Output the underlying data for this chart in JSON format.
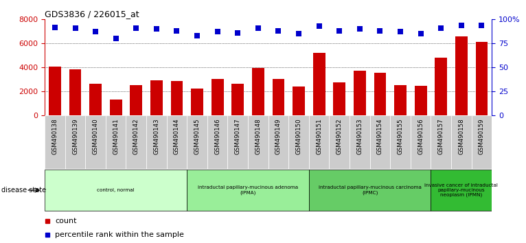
{
  "title": "GDS3836 / 226015_at",
  "samples": [
    "GSM490138",
    "GSM490139",
    "GSM490140",
    "GSM490141",
    "GSM490142",
    "GSM490143",
    "GSM490144",
    "GSM490145",
    "GSM490146",
    "GSM490147",
    "GSM490148",
    "GSM490149",
    "GSM490150",
    "GSM490151",
    "GSM490152",
    "GSM490153",
    "GSM490154",
    "GSM490155",
    "GSM490156",
    "GSM490157",
    "GSM490158",
    "GSM490159"
  ],
  "counts": [
    4050,
    3820,
    2650,
    1350,
    2550,
    2900,
    2880,
    2230,
    3020,
    2650,
    3950,
    3020,
    2420,
    5200,
    2750,
    3750,
    3550,
    2550,
    2450,
    4800,
    6600,
    6150
  ],
  "percentiles": [
    92,
    91,
    87,
    80,
    91,
    90,
    88,
    83,
    87,
    86,
    91,
    88,
    85,
    93,
    88,
    90,
    88,
    87,
    85,
    91,
    94,
    94
  ],
  "bar_color": "#cc0000",
  "dot_color": "#0000cc",
  "ylim_left": [
    0,
    8000
  ],
  "ylim_right": [
    0,
    100
  ],
  "yticks_left": [
    0,
    2000,
    4000,
    6000,
    8000
  ],
  "yticks_right": [
    0,
    25,
    50,
    75,
    100
  ],
  "ytick_labels_right": [
    "0",
    "25",
    "50",
    "75",
    "100%"
  ],
  "grid_values": [
    2000,
    4000,
    6000
  ],
  "disease_groups": [
    {
      "label": "control, normal",
      "start": 0,
      "end": 7,
      "color": "#ccffcc"
    },
    {
      "label": "intraductal papillary-mucinous adenoma\n(IPMA)",
      "start": 7,
      "end": 13,
      "color": "#99ee99"
    },
    {
      "label": "intraductal papillary-mucinous carcinoma\n(IPMC)",
      "start": 13,
      "end": 19,
      "color": "#66cc66"
    },
    {
      "label": "invasive cancer of intraductal\npapillary-mucinous\nneoplasm (IPMN)",
      "start": 19,
      "end": 22,
      "color": "#33bb33"
    }
  ],
  "legend_count_label": "count",
  "legend_pct_label": "percentile rank within the sample",
  "disease_state_label": "disease state",
  "bar_width": 0.6,
  "dot_size": 40,
  "dot_marker": "s",
  "left_axis_color": "#cc0000",
  "right_axis_color": "#0000cc",
  "bg_color": "#ffffff",
  "tick_bg_color": "#cccccc"
}
